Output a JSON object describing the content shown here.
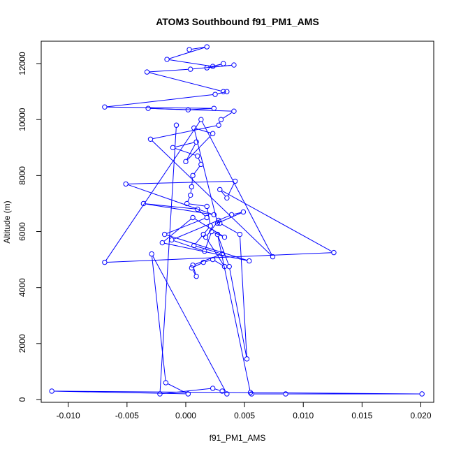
{
  "chart_data": {
    "type": "line",
    "title": "ATOM3 Southbound f91_PM1_AMS",
    "xlabel": "f91_PM1_AMS",
    "ylabel": "Altitude (m)",
    "xlim": [
      -0.0123,
      0.0211
    ],
    "ylim": [
      -100,
      12800
    ],
    "xticks": [
      -0.01,
      -0.005,
      0.0,
      0.005,
      0.01,
      0.015,
      0.02
    ],
    "xtick_labels": [
      "-0.010",
      "-0.005",
      "0.000",
      "0.005",
      "0.010",
      "0.015",
      "0.020"
    ],
    "yticks": [
      0,
      2000,
      4000,
      6000,
      8000,
      10000,
      12000
    ],
    "ytick_labels": [
      "0",
      "2000",
      "4000",
      "6000",
      "8000",
      "10000",
      "12000"
    ],
    "grid": false,
    "line_color": "#0000ff",
    "series": [
      {
        "x": [
          0.0003,
          0.0018,
          -0.0016,
          0.0023,
          0.0032,
          0.0018,
          0.0041,
          0.0004,
          -0.0033,
          0.0032,
          0.0035,
          0.0025,
          -0.0069,
          0.0024,
          0.0002,
          -0.0032,
          0.0041,
          0.003,
          0.0028,
          -0.003,
          0.0074,
          0.0013,
          -0.0069,
          0.0126,
          0.0029,
          0.0035,
          0.0042,
          -0.0051,
          0.0024,
          -0.0036,
          0.001,
          0.0018,
          -0.0018,
          0.0054,
          -0.002,
          0.0006,
          0.0033,
          0.0022,
          0.0016,
          -0.0012,
          0.0039,
          0.0049,
          0.0027,
          0.0007,
          0.0023,
          0.0,
          0.0009,
          -0.0011,
          0.001,
          0.0013,
          0.0006,
          0.0005,
          0.0004,
          0.0001,
          0.0018,
          0.0021,
          0.0015,
          0.0007,
          0.0031,
          0.0006,
          0.0009,
          0.0005,
          0.0015,
          0.0023,
          0.0033,
          0.0017,
          0.0028,
          0.0029,
          0.0046,
          0.0052,
          0.0037,
          0.0027,
          0.0055,
          0.0056,
          0.0085,
          0.0201,
          -0.0114,
          0.0002,
          -0.0017,
          -0.0029,
          0.0035,
          0.0031,
          0.0023,
          -0.0022,
          -0.0008
        ],
        "y": [
          12500,
          12600,
          12150,
          11900,
          12000,
          11850,
          11950,
          11800,
          11700,
          11000,
          11000,
          10900,
          10450,
          10400,
          10350,
          10400,
          10300,
          10000,
          9800,
          9300,
          5100,
          10000,
          4900,
          5250,
          7500,
          7200,
          7800,
          7700,
          6600,
          7000,
          6800,
          6500,
          5900,
          4950,
          5600,
          6500,
          5800,
          6000,
          5300,
          5700,
          6600,
          6700,
          6300,
          9700,
          9500,
          8500,
          9200,
          9000,
          8700,
          8400,
          8000,
          7600,
          7300,
          7000,
          6900,
          6200,
          5900,
          5500,
          5200,
          4800,
          4400,
          4700,
          4900,
          5000,
          4750,
          5800,
          6400,
          6300,
          5900,
          1450,
          4750,
          5900,
          250,
          200,
          200,
          200,
          300,
          200,
          600,
          5200,
          200,
          300,
          400,
          200,
          9800
        ]
      }
    ]
  }
}
